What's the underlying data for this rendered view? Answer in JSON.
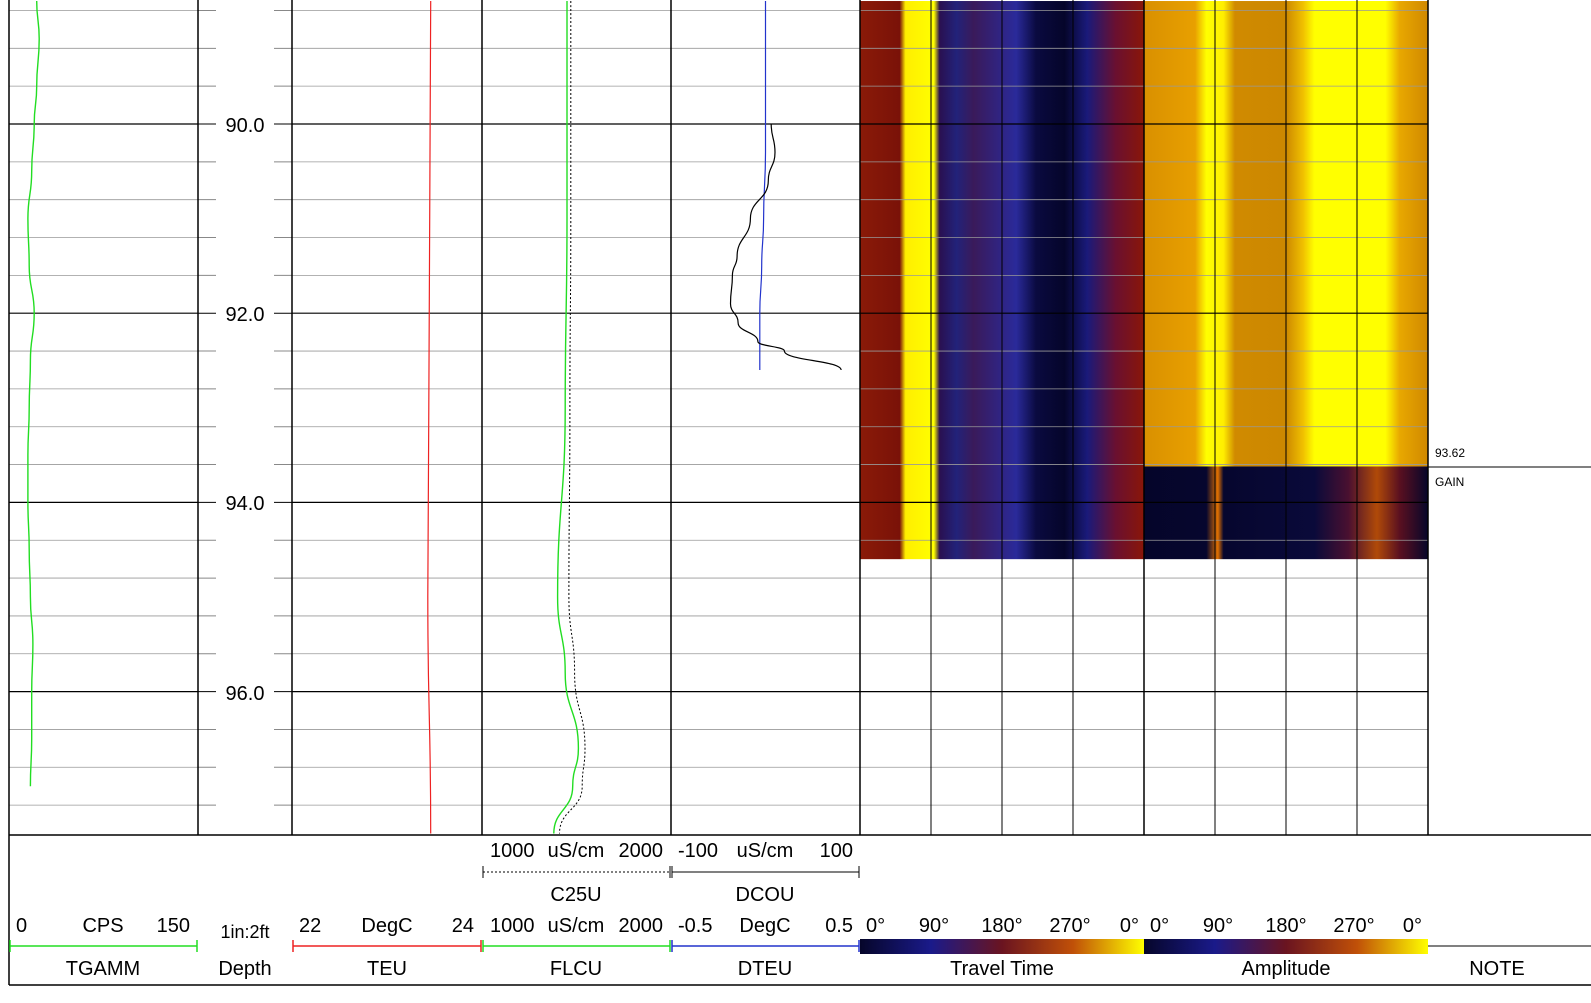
{
  "depth_scale": "1in:2ft",
  "depth_labels": [
    "90.0",
    "92.0",
    "94.0",
    "96.0"
  ],
  "tracks": {
    "tgamm": {
      "name": "TGAMM",
      "unit": "CPS",
      "min": "0",
      "max": "150",
      "color": "#22dd22"
    },
    "depth": {
      "name": "Depth"
    },
    "teu": {
      "name": "TEU",
      "unit": "DegC",
      "min": "22",
      "max": "24",
      "color": "#ee2222"
    },
    "flcu": {
      "name": "FLCU",
      "unit": "uS/cm",
      "min": "1000",
      "max": "2000",
      "color": "#22dd22"
    },
    "c25u": {
      "name": "C25U",
      "unit": "uS/cm",
      "min": "1000",
      "max": "2000",
      "color": "#000000"
    },
    "dteu": {
      "name": "DTEU",
      "unit": "DegC",
      "min": "-0.5",
      "max": "0.5",
      "color": "#2233cc"
    },
    "dcou": {
      "name": "DCOU",
      "unit": "uS/cm",
      "min": "-100",
      "max": "100",
      "color": "#000000"
    },
    "travel_time": {
      "name": "Travel Time",
      "ticks": [
        "0°",
        "90°",
        "180°",
        "270°",
        "0°"
      ]
    },
    "amplitude": {
      "name": "Amplitude",
      "ticks": [
        "0°",
        "90°",
        "180°",
        "270°",
        "0°"
      ]
    },
    "note": {
      "name": "NOTE",
      "entries": [
        {
          "depth": "93.62",
          "label": "93.62"
        },
        {
          "depth": "93.62",
          "label": "GAIN"
        }
      ]
    }
  },
  "chart_data": {
    "type": "line",
    "y_axis": {
      "label": "Depth",
      "unit": "ft",
      "range": [
        88.7,
        97.5
      ],
      "major_step": 2,
      "minor_step": 0.4,
      "reversed": true
    },
    "image_tracks": {
      "travel_time": {
        "depth_range": [
          88.7,
          94.6
        ],
        "palette": [
          "#0c0c2a",
          "#1a1a7a",
          "#3a1a6a",
          "#7a1010",
          "#a01a05",
          "#ffff00"
        ]
      },
      "amplitude": {
        "depth_range": [
          88.7,
          94.6
        ],
        "gain_change_depth": 93.62,
        "palette": [
          "#cc8800",
          "#e8a000",
          "#ffff00"
        ]
      }
    },
    "series": [
      {
        "name": "TGAMM",
        "unit": "CPS",
        "range": [
          0,
          150
        ],
        "points": [
          [
            88.7,
            22
          ],
          [
            89.1,
            24
          ],
          [
            89.6,
            22
          ],
          [
            90.0,
            20
          ],
          [
            90.5,
            18
          ],
          [
            91.0,
            15
          ],
          [
            91.5,
            16
          ],
          [
            92.0,
            20
          ],
          [
            92.5,
            17
          ],
          [
            93.0,
            16
          ],
          [
            93.5,
            15
          ],
          [
            94.0,
            15
          ],
          [
            94.5,
            16
          ],
          [
            95.0,
            17
          ],
          [
            95.5,
            19
          ],
          [
            96.0,
            18
          ],
          [
            96.5,
            18
          ],
          [
            97.0,
            17
          ]
        ]
      },
      {
        "name": "TEU",
        "unit": "DegC",
        "range": [
          22,
          24
        ],
        "points": [
          [
            88.7,
            23.46
          ],
          [
            91.0,
            23.45
          ],
          [
            93.0,
            23.44
          ],
          [
            95.0,
            23.43
          ],
          [
            97.5,
            23.46
          ]
        ]
      },
      {
        "name": "FLCU",
        "unit": "uS/cm",
        "range": [
          1000,
          2000
        ],
        "points": [
          [
            88.7,
            1450
          ],
          [
            91.0,
            1450
          ],
          [
            93.0,
            1440
          ],
          [
            95.0,
            1400
          ],
          [
            95.8,
            1440
          ],
          [
            96.6,
            1510
          ],
          [
            97.0,
            1480
          ],
          [
            97.5,
            1380
          ]
        ]
      },
      {
        "name": "C25U",
        "unit": "uS/cm",
        "range": [
          1000,
          2000
        ],
        "points": [
          [
            88.7,
            1470
          ],
          [
            91.0,
            1470
          ],
          [
            93.0,
            1465
          ],
          [
            95.0,
            1460
          ],
          [
            95.8,
            1490
          ],
          [
            96.6,
            1545
          ],
          [
            97.0,
            1530
          ],
          [
            97.5,
            1410
          ]
        ]
      },
      {
        "name": "DTEU",
        "unit": "DegC",
        "range": [
          -0.5,
          0.5
        ],
        "points": [
          [
            88.7,
            0.0
          ],
          [
            89.5,
            0.0
          ],
          [
            90.3,
            0.0
          ],
          [
            91.0,
            -0.01
          ],
          [
            91.5,
            -0.02
          ],
          [
            92.0,
            -0.03
          ],
          [
            92.3,
            -0.03
          ],
          [
            92.6,
            -0.03
          ]
        ]
      },
      {
        "name": "DCOU",
        "unit": "uS/cm",
        "range": [
          -100,
          100
        ],
        "points": [
          [
            90.0,
            6
          ],
          [
            90.3,
            10
          ],
          [
            90.6,
            3
          ],
          [
            91.0,
            -16
          ],
          [
            91.4,
            -30
          ],
          [
            91.6,
            -35
          ],
          [
            91.9,
            -37
          ],
          [
            92.1,
            -29
          ],
          [
            92.3,
            -8
          ],
          [
            92.4,
            20
          ],
          [
            92.6,
            80
          ]
        ]
      }
    ]
  }
}
